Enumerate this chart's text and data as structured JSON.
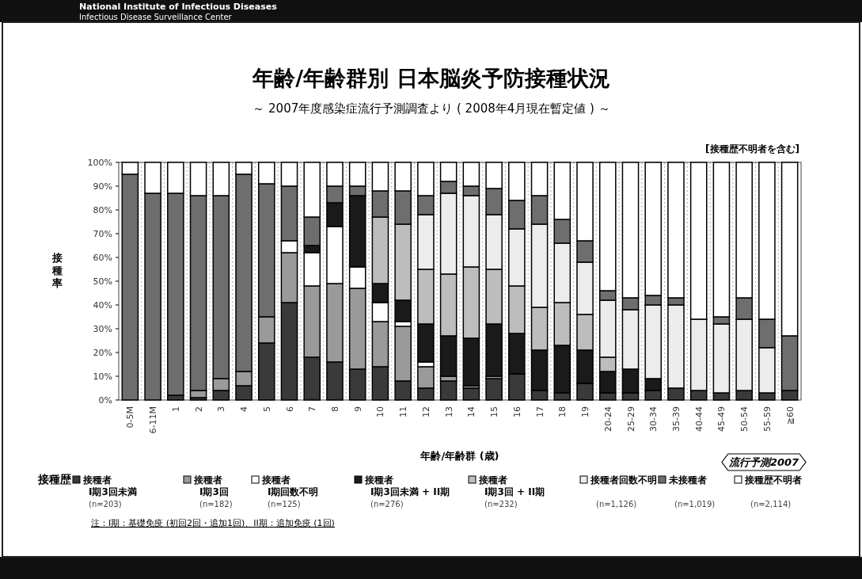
{
  "chart_data": {
    "type": "bar",
    "stacked": true,
    "title": "年齢/年齢群別 日本脳炎予防接種状況",
    "subtitle": "～ 2007年度感染症流行予測調査より ( 2008年4月現在暫定値 ) ～",
    "xlabel": "年齢/年齢群 (歳)",
    "ylabel": "接種率",
    "legend_title": "接種歴",
    "legend": "bottom",
    "annotations": [
      "National Institute of Infectious Diseases",
      "Infectious Disease Surveillance Center",
      "[接種歴不明者を含む]",
      "流行予測2007",
      "注：I期：基礎免疫 (初回2回・追加1回)、II期：追加免疫 (1回)"
    ],
    "categories": [
      "0-5M",
      "6-11M",
      "1",
      "2",
      "3",
      "4",
      "5",
      "6",
      "7",
      "8",
      "9",
      "10",
      "11",
      "12",
      "13",
      "14",
      "15",
      "16",
      "17",
      "18",
      "19",
      "20-24",
      "25-29",
      "30-34",
      "35-39",
      "40-44",
      "45-49",
      "50-54",
      "55-59",
      "≧60"
    ],
    "ylim": [
      0,
      100
    ],
    "yticks": [
      {
        "value": 0,
        "label": "0%"
      },
      {
        "value": 10,
        "label": "10%"
      },
      {
        "value": 20,
        "label": "20%"
      },
      {
        "value": 30,
        "label": "30%"
      },
      {
        "value": 40,
        "label": "40%"
      },
      {
        "value": 50,
        "label": "50%"
      },
      {
        "value": 60,
        "label": "60%"
      },
      {
        "value": 70,
        "label": "70%"
      },
      {
        "value": 80,
        "label": "80%"
      },
      {
        "value": 90,
        "label": "90%"
      },
      {
        "value": 100,
        "label": "100%"
      }
    ],
    "series": [
      {
        "name": "接種者\nI期3回未満\n(n=203)",
        "color": "#3a3a3a",
        "values": [
          0,
          0,
          2,
          1,
          4,
          6,
          24,
          41,
          18,
          16,
          13,
          14,
          8,
          5,
          8,
          5,
          9,
          11,
          4,
          3,
          7,
          3,
          3,
          4,
          5,
          4,
          3,
          4,
          3,
          4
        ]
      },
      {
        "name": "接種者\nI期3回\n(n=182)",
        "color": "#9a9a9a",
        "values": [
          0,
          0,
          0,
          3,
          5,
          6,
          11,
          21,
          30,
          33,
          34,
          19,
          23,
          9,
          2,
          1,
          1,
          0,
          0,
          0,
          0,
          0,
          0,
          0,
          0,
          0,
          0,
          0,
          0,
          0
        ]
      },
      {
        "name": "接種者\nI期回数不明\n(n=125)",
        "color": "#ffffff",
        "values": [
          0,
          0,
          0,
          0,
          0,
          0,
          0,
          5,
          14,
          24,
          9,
          8,
          2,
          2,
          0,
          0,
          0,
          0,
          0,
          0,
          0,
          0,
          0,
          0,
          0,
          0,
          0,
          0,
          0,
          0
        ]
      },
      {
        "name": "接種者\nI期3回未満 + II期\n(n=276)",
        "color": "#1a1a1a",
        "values": [
          0,
          0,
          0,
          0,
          0,
          0,
          0,
          0,
          3,
          10,
          30,
          8,
          9,
          16,
          17,
          20,
          22,
          17,
          17,
          20,
          14,
          9,
          10,
          5,
          0,
          0,
          0,
          0,
          0,
          0
        ]
      },
      {
        "name": "接種者\nI期3回 + II期\n(n=232)",
        "color": "#bdbdbd",
        "values": [
          0,
          0,
          0,
          0,
          0,
          0,
          0,
          0,
          0,
          0,
          0,
          28,
          32,
          23,
          26,
          30,
          23,
          20,
          18,
          18,
          15,
          6,
          0,
          0,
          0,
          0,
          0,
          0,
          0,
          0
        ]
      },
      {
        "name": "接種者回数不明\n(n=1,126)",
        "color": "#ececec",
        "values": [
          0,
          0,
          0,
          0,
          0,
          0,
          0,
          0,
          0,
          0,
          0,
          0,
          0,
          23,
          34,
          30,
          23,
          24,
          35,
          25,
          22,
          24,
          25,
          31,
          35,
          30,
          29,
          30,
          19,
          0
        ]
      },
      {
        "name": "未接種者\n\n(n=1,019)",
        "color": "#6e6e6e",
        "values": [
          95,
          87,
          85,
          82,
          77,
          83,
          56,
          23,
          12,
          7,
          4,
          11,
          14,
          8,
          5,
          4,
          11,
          12,
          12,
          10,
          9,
          4,
          5,
          4,
          3,
          0,
          3,
          9,
          12,
          23
        ]
      },
      {
        "name": "接種歴不明者\n\n(n=2,114)",
        "color": "#ffffff",
        "values": [
          5,
          13,
          13,
          14,
          14,
          5,
          9,
          10,
          23,
          10,
          10,
          12,
          12,
          14,
          8,
          10,
          11,
          16,
          14,
          24,
          33,
          54,
          57,
          56,
          57,
          66,
          65,
          57,
          66,
          73
        ]
      }
    ]
  }
}
